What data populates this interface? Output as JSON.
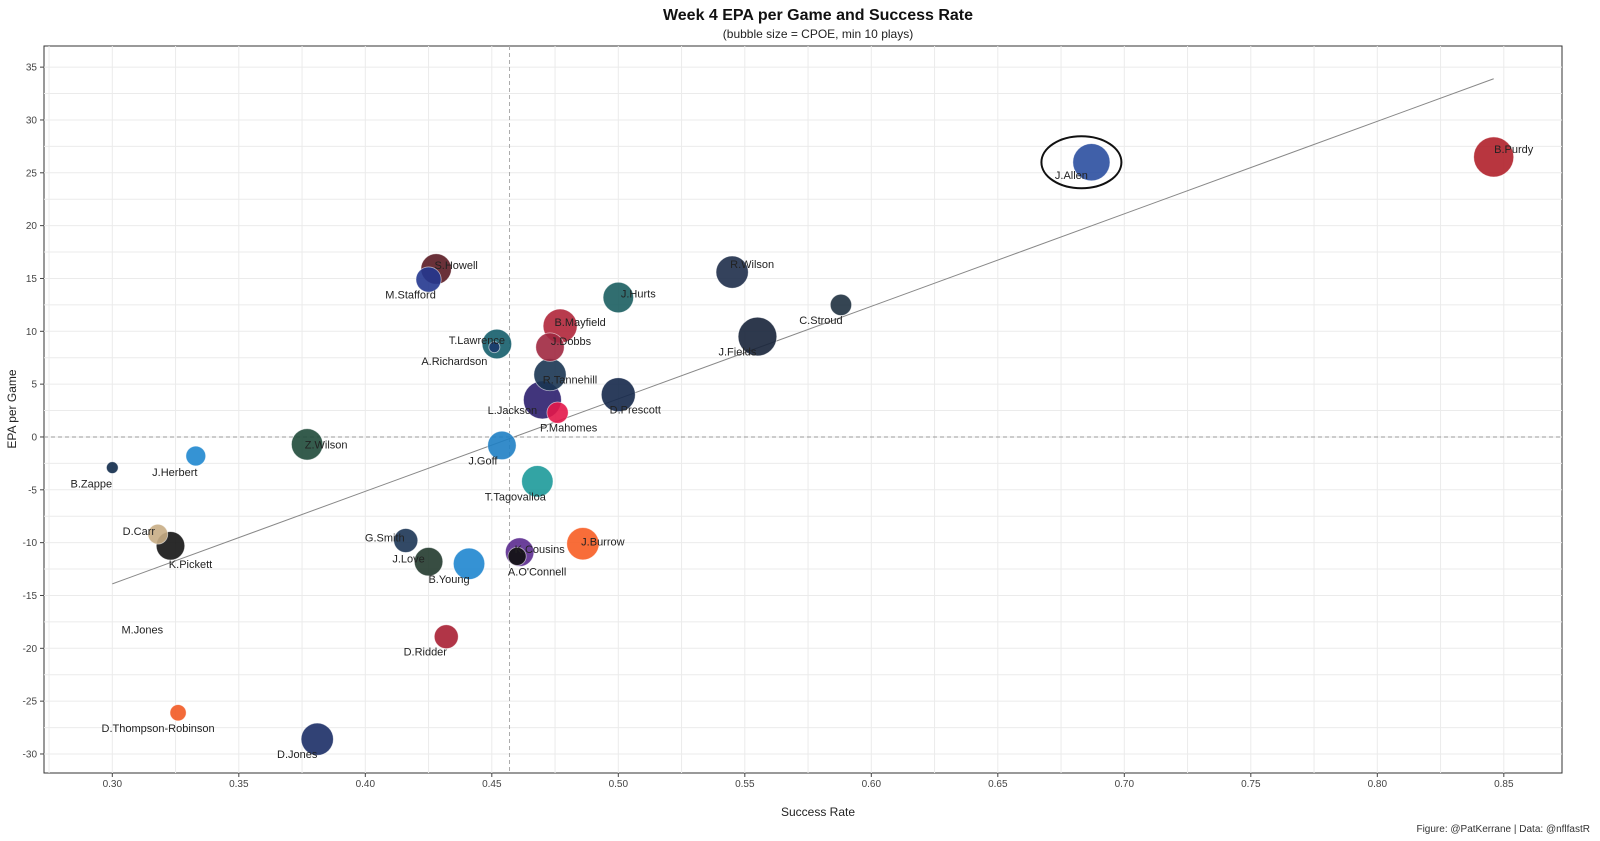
{
  "chart_data": {
    "type": "scatter",
    "title": "Week 4 EPA per Game and Success Rate",
    "subtitle": "(bubble size = CPOE, min 10 plays)",
    "xlabel": "Success Rate",
    "ylabel": "EPA per Game",
    "caption": "Figure: @PatKerrane | Data: @nflfastR",
    "xlim": [
      0.273,
      0.873
    ],
    "ylim": [
      -31.8,
      37.0
    ],
    "x_ticks": [
      0.3,
      0.35,
      0.4,
      0.45,
      0.5,
      0.55,
      0.6,
      0.65,
      0.7,
      0.75,
      0.8,
      0.85
    ],
    "x_tick_labels": [
      "0.30",
      "0.35",
      "0.40",
      "0.45",
      "0.50",
      "0.55",
      "0.60",
      "0.65",
      "0.70",
      "0.75",
      "0.80",
      "0.85"
    ],
    "y_ticks": [
      -30,
      -25,
      -20,
      -15,
      -10,
      -5,
      0,
      5,
      10,
      15,
      20,
      25,
      30,
      35
    ],
    "y_tick_labels": [
      "-30",
      "-25",
      "-20",
      "-15",
      "-10",
      "-5",
      "0",
      "5",
      "10",
      "15",
      "20",
      "25",
      "30",
      "35"
    ],
    "grid": true,
    "ref_lines": {
      "x_mean": 0.457,
      "y_zero": 0
    },
    "trend_line": {
      "x": [
        0.3,
        0.846
      ],
      "y": [
        -13.9,
        33.9
      ]
    },
    "highlight": {
      "player": "J.Allen"
    },
    "points": [
      {
        "name": "B.Purdy",
        "x": 0.846,
        "y": 26.5,
        "cpoe": 13.0,
        "color": "#b0202a"
      },
      {
        "name": "J.Allen",
        "x": 0.687,
        "y": 26.0,
        "cpoe": 11.0,
        "color": "#2b4fa0"
      },
      {
        "name": "R.Wilson",
        "x": 0.545,
        "y": 15.6,
        "cpoe": 8.0,
        "color": "#1e2d4a"
      },
      {
        "name": "C.Stroud",
        "x": 0.588,
        "y": 12.5,
        "cpoe": 3.0,
        "color": "#1f3140"
      },
      {
        "name": "J.Fields",
        "x": 0.555,
        "y": 9.5,
        "cpoe": 12.0,
        "color": "#17233a"
      },
      {
        "name": "J.Hurts",
        "x": 0.5,
        "y": 13.2,
        "cpoe": 7.0,
        "color": "#1b5e60"
      },
      {
        "name": "S.Howell",
        "x": 0.428,
        "y": 15.9,
        "cpoe": 7.0,
        "color": "#5a1b24"
      },
      {
        "name": "M.Stafford",
        "x": 0.425,
        "y": 14.9,
        "cpoe": 4.5,
        "color": "#23378f"
      },
      {
        "name": "B.Mayfield",
        "x": 0.477,
        "y": 10.5,
        "cpoe": 9.0,
        "color": "#b0263a"
      },
      {
        "name": "J.Dobbs",
        "x": 0.473,
        "y": 8.5,
        "cpoe": 6.0,
        "color": "#a02840"
      },
      {
        "name": "T.Lawrence",
        "x": 0.452,
        "y": 8.8,
        "cpoe": 6.5,
        "color": "#155e6b"
      },
      {
        "name": "A.Richardson",
        "x": 0.451,
        "y": 8.5,
        "cpoe": 0.5,
        "color": "#1a3a6b"
      },
      {
        "name": "R.Tannehill",
        "x": 0.473,
        "y": 5.9,
        "cpoe": 8.0,
        "color": "#1a3552"
      },
      {
        "name": "D.Prescott",
        "x": 0.5,
        "y": 4.0,
        "cpoe": 9.0,
        "color": "#15284a"
      },
      {
        "name": "L.Jackson",
        "x": 0.47,
        "y": 3.5,
        "cpoe": 11.5,
        "color": "#2c1f6e"
      },
      {
        "name": "P.Mahomes",
        "x": 0.476,
        "y": 2.3,
        "cpoe": 3.0,
        "color": "#e3174a"
      },
      {
        "name": "Z.Wilson",
        "x": 0.377,
        "y": -0.7,
        "cpoe": 7.5,
        "color": "#1f4a3a"
      },
      {
        "name": "J.Goff",
        "x": 0.454,
        "y": -0.8,
        "cpoe": 6.0,
        "color": "#1f7fc4"
      },
      {
        "name": "J.Herbert",
        "x": 0.333,
        "y": -1.8,
        "cpoe": 2.5,
        "color": "#1f87cf"
      },
      {
        "name": "B.Zappe",
        "x": 0.3,
        "y": -2.9,
        "cpoe": 0.6,
        "color": "#102a4a"
      },
      {
        "name": "T.Tagovailoa",
        "x": 0.468,
        "y": -4.2,
        "cpoe": 7.5,
        "color": "#1d9a9a"
      },
      {
        "name": "D.Carr",
        "x": 0.318,
        "y": -9.2,
        "cpoe": 2.5,
        "color": "#c8ad85"
      },
      {
        "name": "K.Pickett",
        "x": 0.323,
        "y": -10.3,
        "cpoe": 6.0,
        "color": "#141414"
      },
      {
        "name": "G.Smith",
        "x": 0.416,
        "y": -9.8,
        "cpoe": 4.0,
        "color": "#1c3555"
      },
      {
        "name": "J.Love",
        "x": 0.425,
        "y": -11.8,
        "cpoe": 6.0,
        "color": "#223a2e"
      },
      {
        "name": "B.Young",
        "x": 0.441,
        "y": -12.0,
        "cpoe": 7.5,
        "color": "#1f86cf"
      },
      {
        "name": "K.Cousins",
        "x": 0.461,
        "y": -10.9,
        "cpoe": 6.0,
        "color": "#5b2b8f"
      },
      {
        "name": "A.O'Connell",
        "x": 0.46,
        "y": -11.3,
        "cpoe": 2.0,
        "color": "#111111"
      },
      {
        "name": "J.Burrow",
        "x": 0.486,
        "y": -10.1,
        "cpoe": 8.0,
        "color": "#f75d23"
      },
      {
        "name": "M.Jones",
        "x": 0.3,
        "y": -18.2,
        "cpoe": 0.0,
        "color": "#1a2b50"
      },
      {
        "name": "D.Ridder",
        "x": 0.432,
        "y": -18.9,
        "cpoe": 4.0,
        "color": "#a81f33"
      },
      {
        "name": "D.Thompson-Robinson",
        "x": 0.326,
        "y": -26.1,
        "cpoe": 1.5,
        "color": "#f25a24"
      },
      {
        "name": "D.Jones",
        "x": 0.381,
        "y": -28.6,
        "cpoe": 8.0,
        "color": "#1b2d66"
      }
    ]
  }
}
